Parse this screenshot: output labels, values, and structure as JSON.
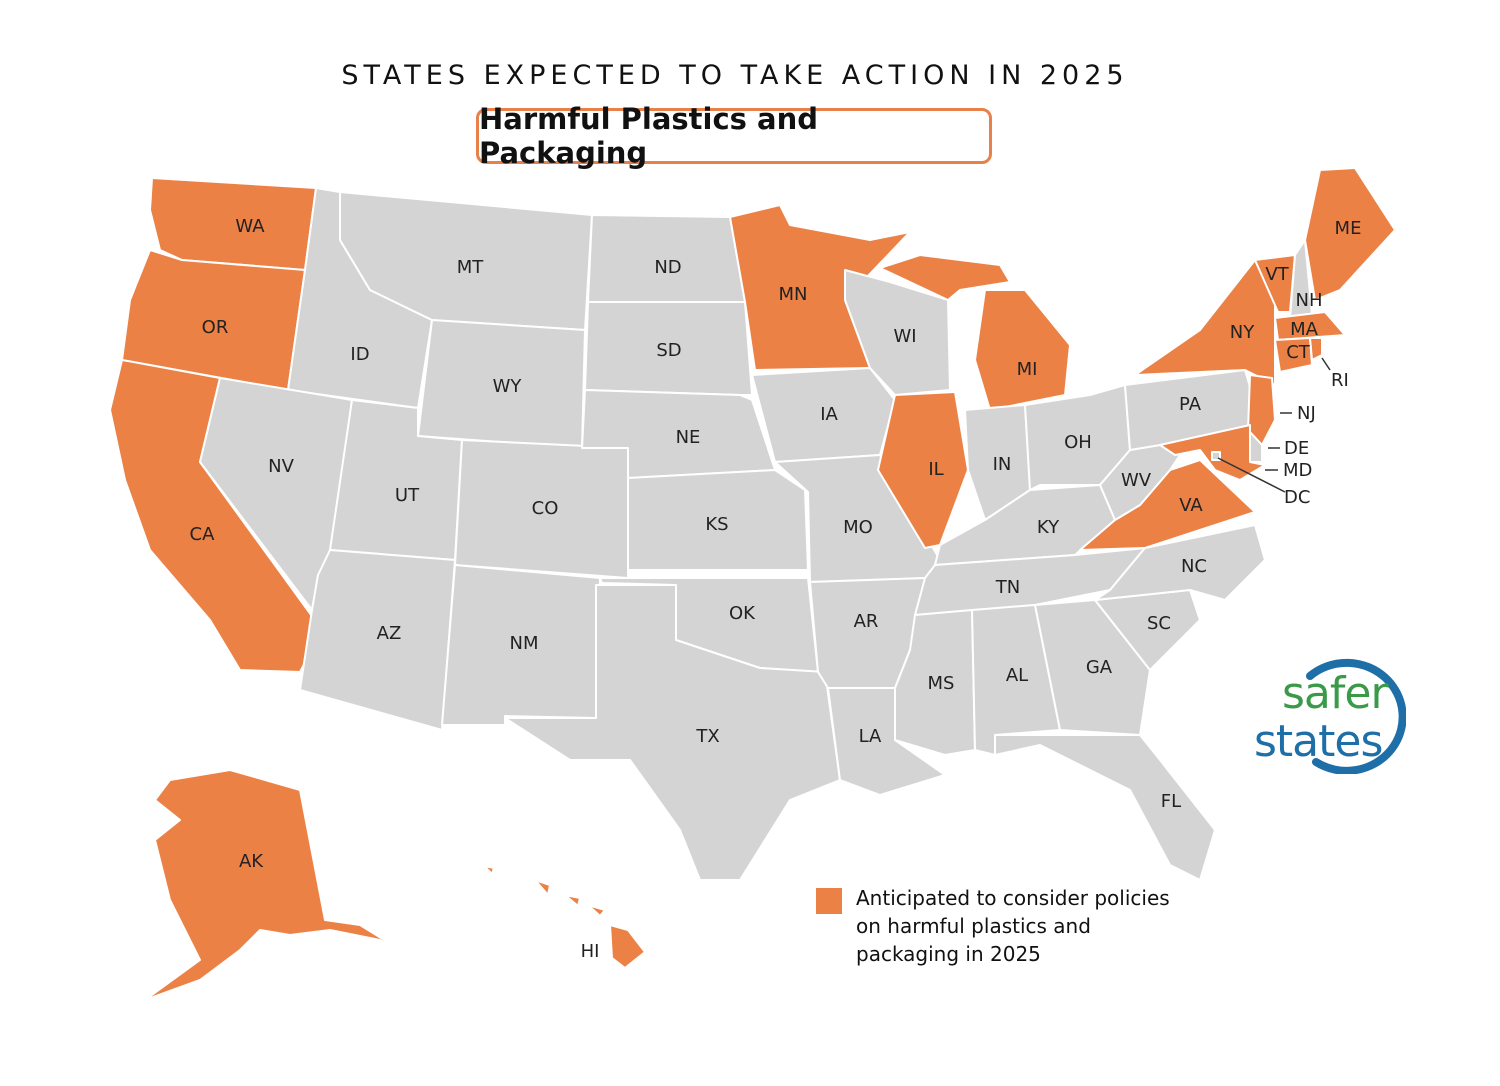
{
  "kicker": "STATES EXPECTED TO TAKE ACTION IN 2025",
  "title": "Harmful Plastics and Packaging",
  "colors": {
    "action": "#ec8145",
    "other": "#d4d4d4",
    "border": "#ffffff",
    "accent": "#e8804a"
  },
  "legend": {
    "label": "Anticipated to consider policies on harmful plastics and packaging in 2025"
  },
  "logo": {
    "line1": "safer",
    "line2": "states"
  },
  "states": [
    {
      "abbr": "WA",
      "status": "action"
    },
    {
      "abbr": "OR",
      "status": "action"
    },
    {
      "abbr": "CA",
      "status": "action"
    },
    {
      "abbr": "ID",
      "status": "other"
    },
    {
      "abbr": "NV",
      "status": "other"
    },
    {
      "abbr": "MT",
      "status": "other"
    },
    {
      "abbr": "WY",
      "status": "other"
    },
    {
      "abbr": "UT",
      "status": "other"
    },
    {
      "abbr": "AZ",
      "status": "other"
    },
    {
      "abbr": "CO",
      "status": "other"
    },
    {
      "abbr": "NM",
      "status": "other"
    },
    {
      "abbr": "ND",
      "status": "other"
    },
    {
      "abbr": "SD",
      "status": "other"
    },
    {
      "abbr": "NE",
      "status": "other"
    },
    {
      "abbr": "KS",
      "status": "other"
    },
    {
      "abbr": "OK",
      "status": "other"
    },
    {
      "abbr": "TX",
      "status": "other"
    },
    {
      "abbr": "MN",
      "status": "action"
    },
    {
      "abbr": "IA",
      "status": "other"
    },
    {
      "abbr": "MO",
      "status": "other"
    },
    {
      "abbr": "AR",
      "status": "other"
    },
    {
      "abbr": "LA",
      "status": "other"
    },
    {
      "abbr": "WI",
      "status": "other"
    },
    {
      "abbr": "IL",
      "status": "action"
    },
    {
      "abbr": "MI",
      "status": "action"
    },
    {
      "abbr": "IN",
      "status": "other"
    },
    {
      "abbr": "OH",
      "status": "other"
    },
    {
      "abbr": "KY",
      "status": "other"
    },
    {
      "abbr": "TN",
      "status": "other"
    },
    {
      "abbr": "MS",
      "status": "other"
    },
    {
      "abbr": "AL",
      "status": "other"
    },
    {
      "abbr": "GA",
      "status": "other"
    },
    {
      "abbr": "FL",
      "status": "other"
    },
    {
      "abbr": "SC",
      "status": "other"
    },
    {
      "abbr": "NC",
      "status": "other"
    },
    {
      "abbr": "VA",
      "status": "action"
    },
    {
      "abbr": "WV",
      "status": "other"
    },
    {
      "abbr": "PA",
      "status": "other"
    },
    {
      "abbr": "NY",
      "status": "action"
    },
    {
      "abbr": "VT",
      "status": "action"
    },
    {
      "abbr": "NH",
      "status": "other"
    },
    {
      "abbr": "ME",
      "status": "action"
    },
    {
      "abbr": "MA",
      "status": "action"
    },
    {
      "abbr": "CT",
      "status": "action"
    },
    {
      "abbr": "RI",
      "status": "action"
    },
    {
      "abbr": "NJ",
      "status": "action"
    },
    {
      "abbr": "DE",
      "status": "other"
    },
    {
      "abbr": "MD",
      "status": "action"
    },
    {
      "abbr": "DC",
      "status": "other"
    },
    {
      "abbr": "AK",
      "status": "action"
    },
    {
      "abbr": "HI",
      "status": "action"
    }
  ]
}
